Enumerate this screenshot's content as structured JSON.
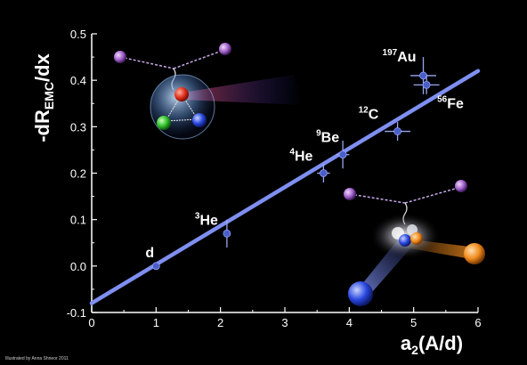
{
  "chart_data": {
    "type": "scatter",
    "title": "",
    "xlabel": "a₂(A/d)",
    "ylabel": "-dR_EMC/dx",
    "xlim": [
      0,
      6
    ],
    "ylim": [
      -0.1,
      0.5
    ],
    "x_ticks": [
      "0",
      "1",
      "2",
      "3",
      "4",
      "5",
      "6"
    ],
    "y_ticks": [
      "-0.1",
      "0.0",
      "0.1",
      "0.2",
      "0.3",
      "0.4",
      "0.5"
    ],
    "grid": false,
    "series": [
      {
        "points": [
          {
            "label": "d",
            "x": 1.0,
            "y": 0.0,
            "xerr": 0.0,
            "yerr": 0.0
          },
          {
            "label": "3He",
            "x": 2.1,
            "y": 0.07,
            "xerr": 0.05,
            "yerr": 0.03
          },
          {
            "label": "4He",
            "x": 3.6,
            "y": 0.2,
            "xerr": 0.1,
            "yerr": 0.02
          },
          {
            "label": "9Be",
            "x": 3.9,
            "y": 0.24,
            "xerr": 0.1,
            "yerr": 0.03
          },
          {
            "label": "12C",
            "x": 4.75,
            "y": 0.29,
            "xerr": 0.2,
            "yerr": 0.02
          },
          {
            "label": "197Au",
            "x": 5.15,
            "y": 0.41,
            "xerr": 0.2,
            "yerr": 0.04
          },
          {
            "label": "56Fe",
            "x": 5.2,
            "y": 0.39,
            "xerr": 0.2,
            "yerr": 0.02
          }
        ]
      }
    ],
    "fit_line": {
      "x": [
        0,
        6
      ],
      "y": [
        -0.08,
        0.42
      ]
    },
    "point_labels": [
      {
        "text": "d",
        "base": "d",
        "sup": ""
      },
      {
        "text": "3He",
        "base": "He",
        "sup": "3"
      },
      {
        "text": "4He",
        "base": "He",
        "sup": "4"
      },
      {
        "text": "9Be",
        "base": "Be",
        "sup": "9"
      },
      {
        "text": "12C",
        "base": "C",
        "sup": "12"
      },
      {
        "text": "197Au",
        "base": "Au",
        "sup": "197"
      },
      {
        "text": "56Fe",
        "base": "Fe",
        "sup": "56"
      }
    ]
  },
  "labels": {
    "ylabel_pre": "-dR",
    "ylabel_sub": "EMC",
    "ylabel_post": "/dx",
    "xlabel_pre": "a",
    "xlabel_sub": "2",
    "xlabel_post": "(A/d)"
  },
  "credit": "Illustrated by Anna Shneor 2011",
  "colors": {
    "background": "#000000",
    "axis": "#ffffff",
    "fit_line": "#7f8ff0",
    "marker": "#4a5ec8",
    "errorbar": "#9aa6ee",
    "text": "#ffffff"
  }
}
